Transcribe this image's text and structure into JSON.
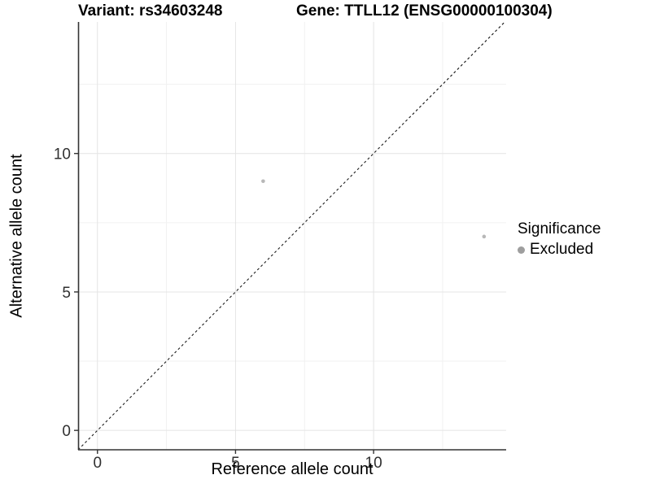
{
  "header": {
    "variant_title": "Variant: rs34603248",
    "gene_title": "Gene: TTLL12 (ENSG00000100304)"
  },
  "legend": {
    "title": "Significance",
    "items": [
      {
        "label": "Excluded",
        "color": "#9e9e9e"
      }
    ]
  },
  "colors": {
    "background": "#ffffff",
    "axis_line": "#333333",
    "tick_mark": "#333333",
    "tick_label": "#303030",
    "major_grid": "#e4e4e4",
    "minor_grid": "#f1f1f1",
    "identity_line": "#1a1a1a"
  },
  "chart_data": {
    "type": "scatter",
    "title": "Variant: rs34603248 | Gene: TTLL12 (ENSG00000100304)",
    "xlabel": "Reference allele count",
    "ylabel": "Alternative allele count",
    "xlim": [
      -0.7,
      14.8
    ],
    "ylim": [
      -0.7,
      14.75
    ],
    "x_ticks": [
      0,
      5,
      10
    ],
    "y_ticks": [
      0,
      5,
      10
    ],
    "x_minor_ticks": [
      2.5,
      7.5,
      12.5
    ],
    "y_minor_ticks": [
      2.5,
      7.5,
      12.5
    ],
    "grid": true,
    "legend_position": "right",
    "series": [
      {
        "name": "Excluded",
        "point_color": "#b8b8b8",
        "points": [
          {
            "x": 6,
            "y": 9
          },
          {
            "x": 14,
            "y": 7
          }
        ]
      }
    ],
    "reference_line": {
      "slope": 1,
      "intercept": 0,
      "linetype": "dashed"
    }
  }
}
